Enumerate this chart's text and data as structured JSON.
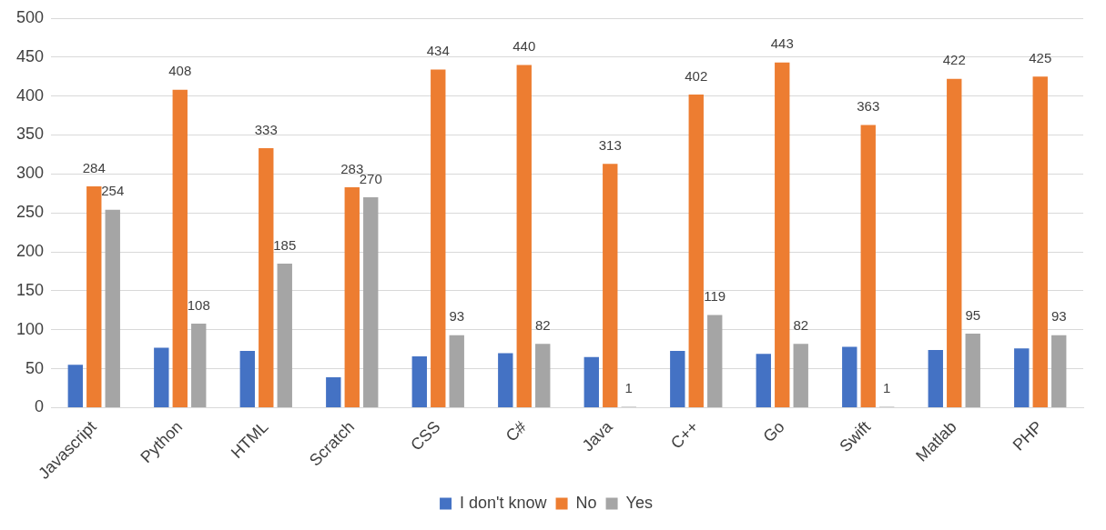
{
  "chart_data": {
    "type": "bar",
    "categories": [
      "Javascript",
      "Python",
      "HTML",
      "Scratch",
      "CSS",
      "C#",
      "Java",
      "C++",
      "Go",
      "Swift",
      "Matlab",
      "PHP"
    ],
    "series": [
      {
        "name": "I don't know",
        "color": "#4472c4",
        "values": [
          55,
          77,
          73,
          39,
          66,
          70,
          65,
          73,
          69,
          78,
          74,
          76
        ]
      },
      {
        "name": "No",
        "color": "#ed7d31",
        "values": [
          284,
          408,
          333,
          283,
          434,
          440,
          313,
          402,
          443,
          363,
          422,
          425
        ],
        "value_labels": [
          "284",
          "408",
          "333",
          "283",
          "434",
          "440",
          "313",
          "402",
          "443",
          "363",
          "422",
          "425"
        ]
      },
      {
        "name": "Yes",
        "color": "#a5a5a5",
        "values": [
          254,
          108,
          185,
          270,
          93,
          82,
          1,
          119,
          82,
          1,
          95,
          93
        ],
        "value_labels": [
          "254",
          "108",
          "185",
          "270",
          "93",
          "82",
          "1",
          "119",
          "82",
          "1",
          "95",
          "93"
        ]
      }
    ],
    "ylim": [
      0,
      500
    ],
    "yticks": [
      0,
      50,
      100,
      150,
      200,
      250,
      300,
      350,
      400,
      450,
      500
    ],
    "grid": "y",
    "legend": "bottom"
  }
}
